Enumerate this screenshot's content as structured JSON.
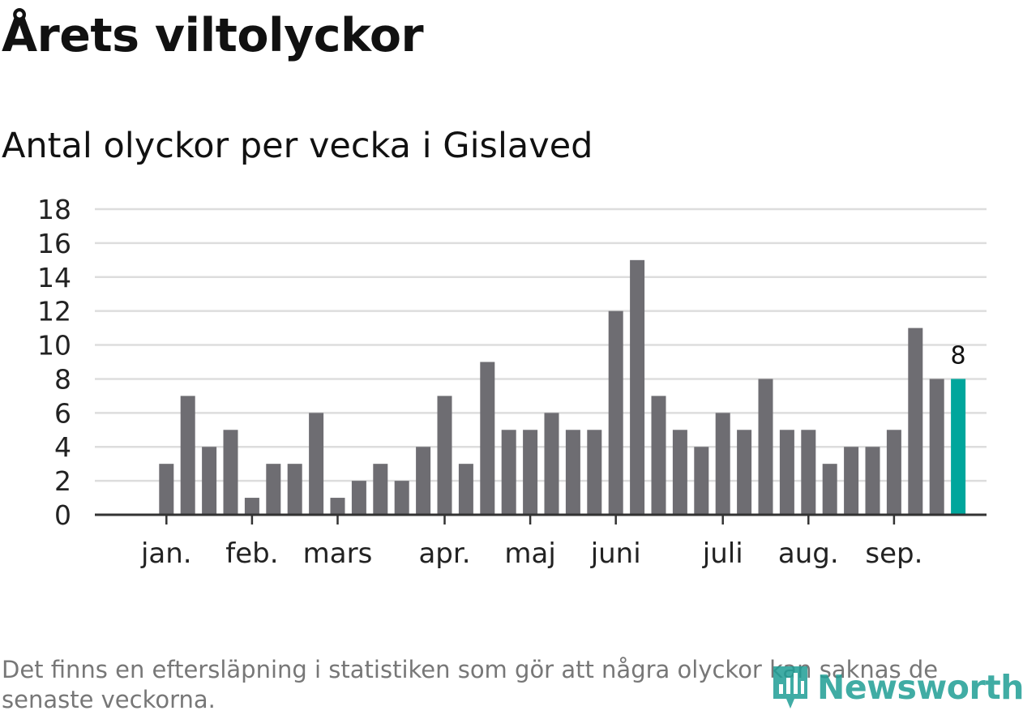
{
  "title": "Årets viltolyckor",
  "subtitle": "Antal olyckor per vecka i Gislaved",
  "footnote": "Det finns en eftersläpning i statistiken som gör att några olyckor kan saknas de senaste veckorna.",
  "logo": {
    "text": "Newsworthy",
    "icon": "bar-chart-icon"
  },
  "colors": {
    "bar": "#6e6d72",
    "highlight": "#00a69c",
    "grid": "#dddddd",
    "axis": "#333333"
  },
  "chart_data": {
    "type": "bar",
    "title": "Årets viltolyckor",
    "subtitle": "Antal olyckor per vecka i Gislaved",
    "xlabel": "",
    "ylabel": "",
    "ylim": [
      0,
      18
    ],
    "yticks": [
      0,
      2,
      4,
      6,
      8,
      10,
      12,
      14,
      16,
      18
    ],
    "grid": true,
    "values": [
      0,
      0,
      3,
      7,
      4,
      5,
      1,
      3,
      3,
      6,
      1,
      2,
      3,
      2,
      4,
      7,
      3,
      9,
      5,
      5,
      6,
      5,
      5,
      12,
      15,
      7,
      5,
      4,
      6,
      5,
      8,
      5,
      5,
      3,
      4,
      4,
      5,
      11,
      8,
      8
    ],
    "highlight_index": 39,
    "highlight_label": "8",
    "month_labels": [
      {
        "label": "jan.",
        "at_bar": 2
      },
      {
        "label": "feb.",
        "at_bar": 6
      },
      {
        "label": "mars",
        "at_bar": 10
      },
      {
        "label": "apr.",
        "at_bar": 15
      },
      {
        "label": "maj",
        "at_bar": 19
      },
      {
        "label": "juni",
        "at_bar": 23
      },
      {
        "label": "juli",
        "at_bar": 28
      },
      {
        "label": "aug.",
        "at_bar": 32
      },
      {
        "label": "sep.",
        "at_bar": 36
      }
    ]
  }
}
